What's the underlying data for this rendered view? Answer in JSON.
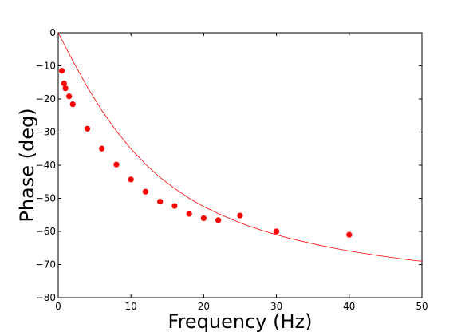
{
  "chart_data": {
    "type": "scatter",
    "title": "",
    "xlabel": "Frequency (Hz)",
    "ylabel": "Phase (deg)",
    "xlim": [
      0,
      50
    ],
    "ylim": [
      -80,
      0
    ],
    "x_ticks": [
      0,
      10,
      20,
      30,
      40,
      50
    ],
    "y_ticks": [
      0,
      -10,
      -20,
      -30,
      -40,
      -50,
      -60,
      -70,
      -80
    ],
    "x_tick_labels": [
      "0",
      "10",
      "20",
      "30",
      "40",
      "50"
    ],
    "y_tick_labels": [
      "0",
      "−10",
      "−20",
      "−30",
      "−40",
      "−50",
      "−60",
      "−70",
      "−80"
    ],
    "grid": false,
    "legend": "none",
    "series": [
      {
        "kind": "points",
        "color": "#ff0000",
        "x": [
          0.5,
          0.8,
          1.0,
          1.5,
          2.0,
          4.0,
          6.0,
          8.0,
          10.0,
          12.0,
          14.0,
          16.0,
          18.0,
          20.0,
          22.0,
          25.0,
          30.0,
          40.0
        ],
        "y": [
          -11.5,
          -15.3,
          -16.8,
          -19.2,
          -21.6,
          -29.0,
          -35.0,
          -39.8,
          -44.3,
          -48.0,
          -51.0,
          -52.3,
          -54.7,
          -56.0,
          -56.6,
          -55.2,
          -60.0,
          -61.0
        ]
      },
      {
        "kind": "line",
        "color": "#ff0000",
        "x": [
          0,
          2,
          4,
          6,
          8,
          10,
          12,
          14,
          16,
          18,
          20,
          22,
          24,
          26,
          28,
          30,
          32,
          34,
          36,
          38,
          40,
          42,
          44,
          46,
          48,
          50
        ],
        "y": [
          0,
          -8.5,
          -16.4,
          -23.5,
          -29.7,
          -35.1,
          -39.7,
          -43.7,
          -47.0,
          -50.0,
          -52.5,
          -54.6,
          -56.5,
          -58.2,
          -59.7,
          -61.0,
          -62.2,
          -63.2,
          -64.2,
          -65.1,
          -65.9,
          -66.6,
          -67.3,
          -67.9,
          -68.5,
          -69.0
        ]
      }
    ]
  }
}
